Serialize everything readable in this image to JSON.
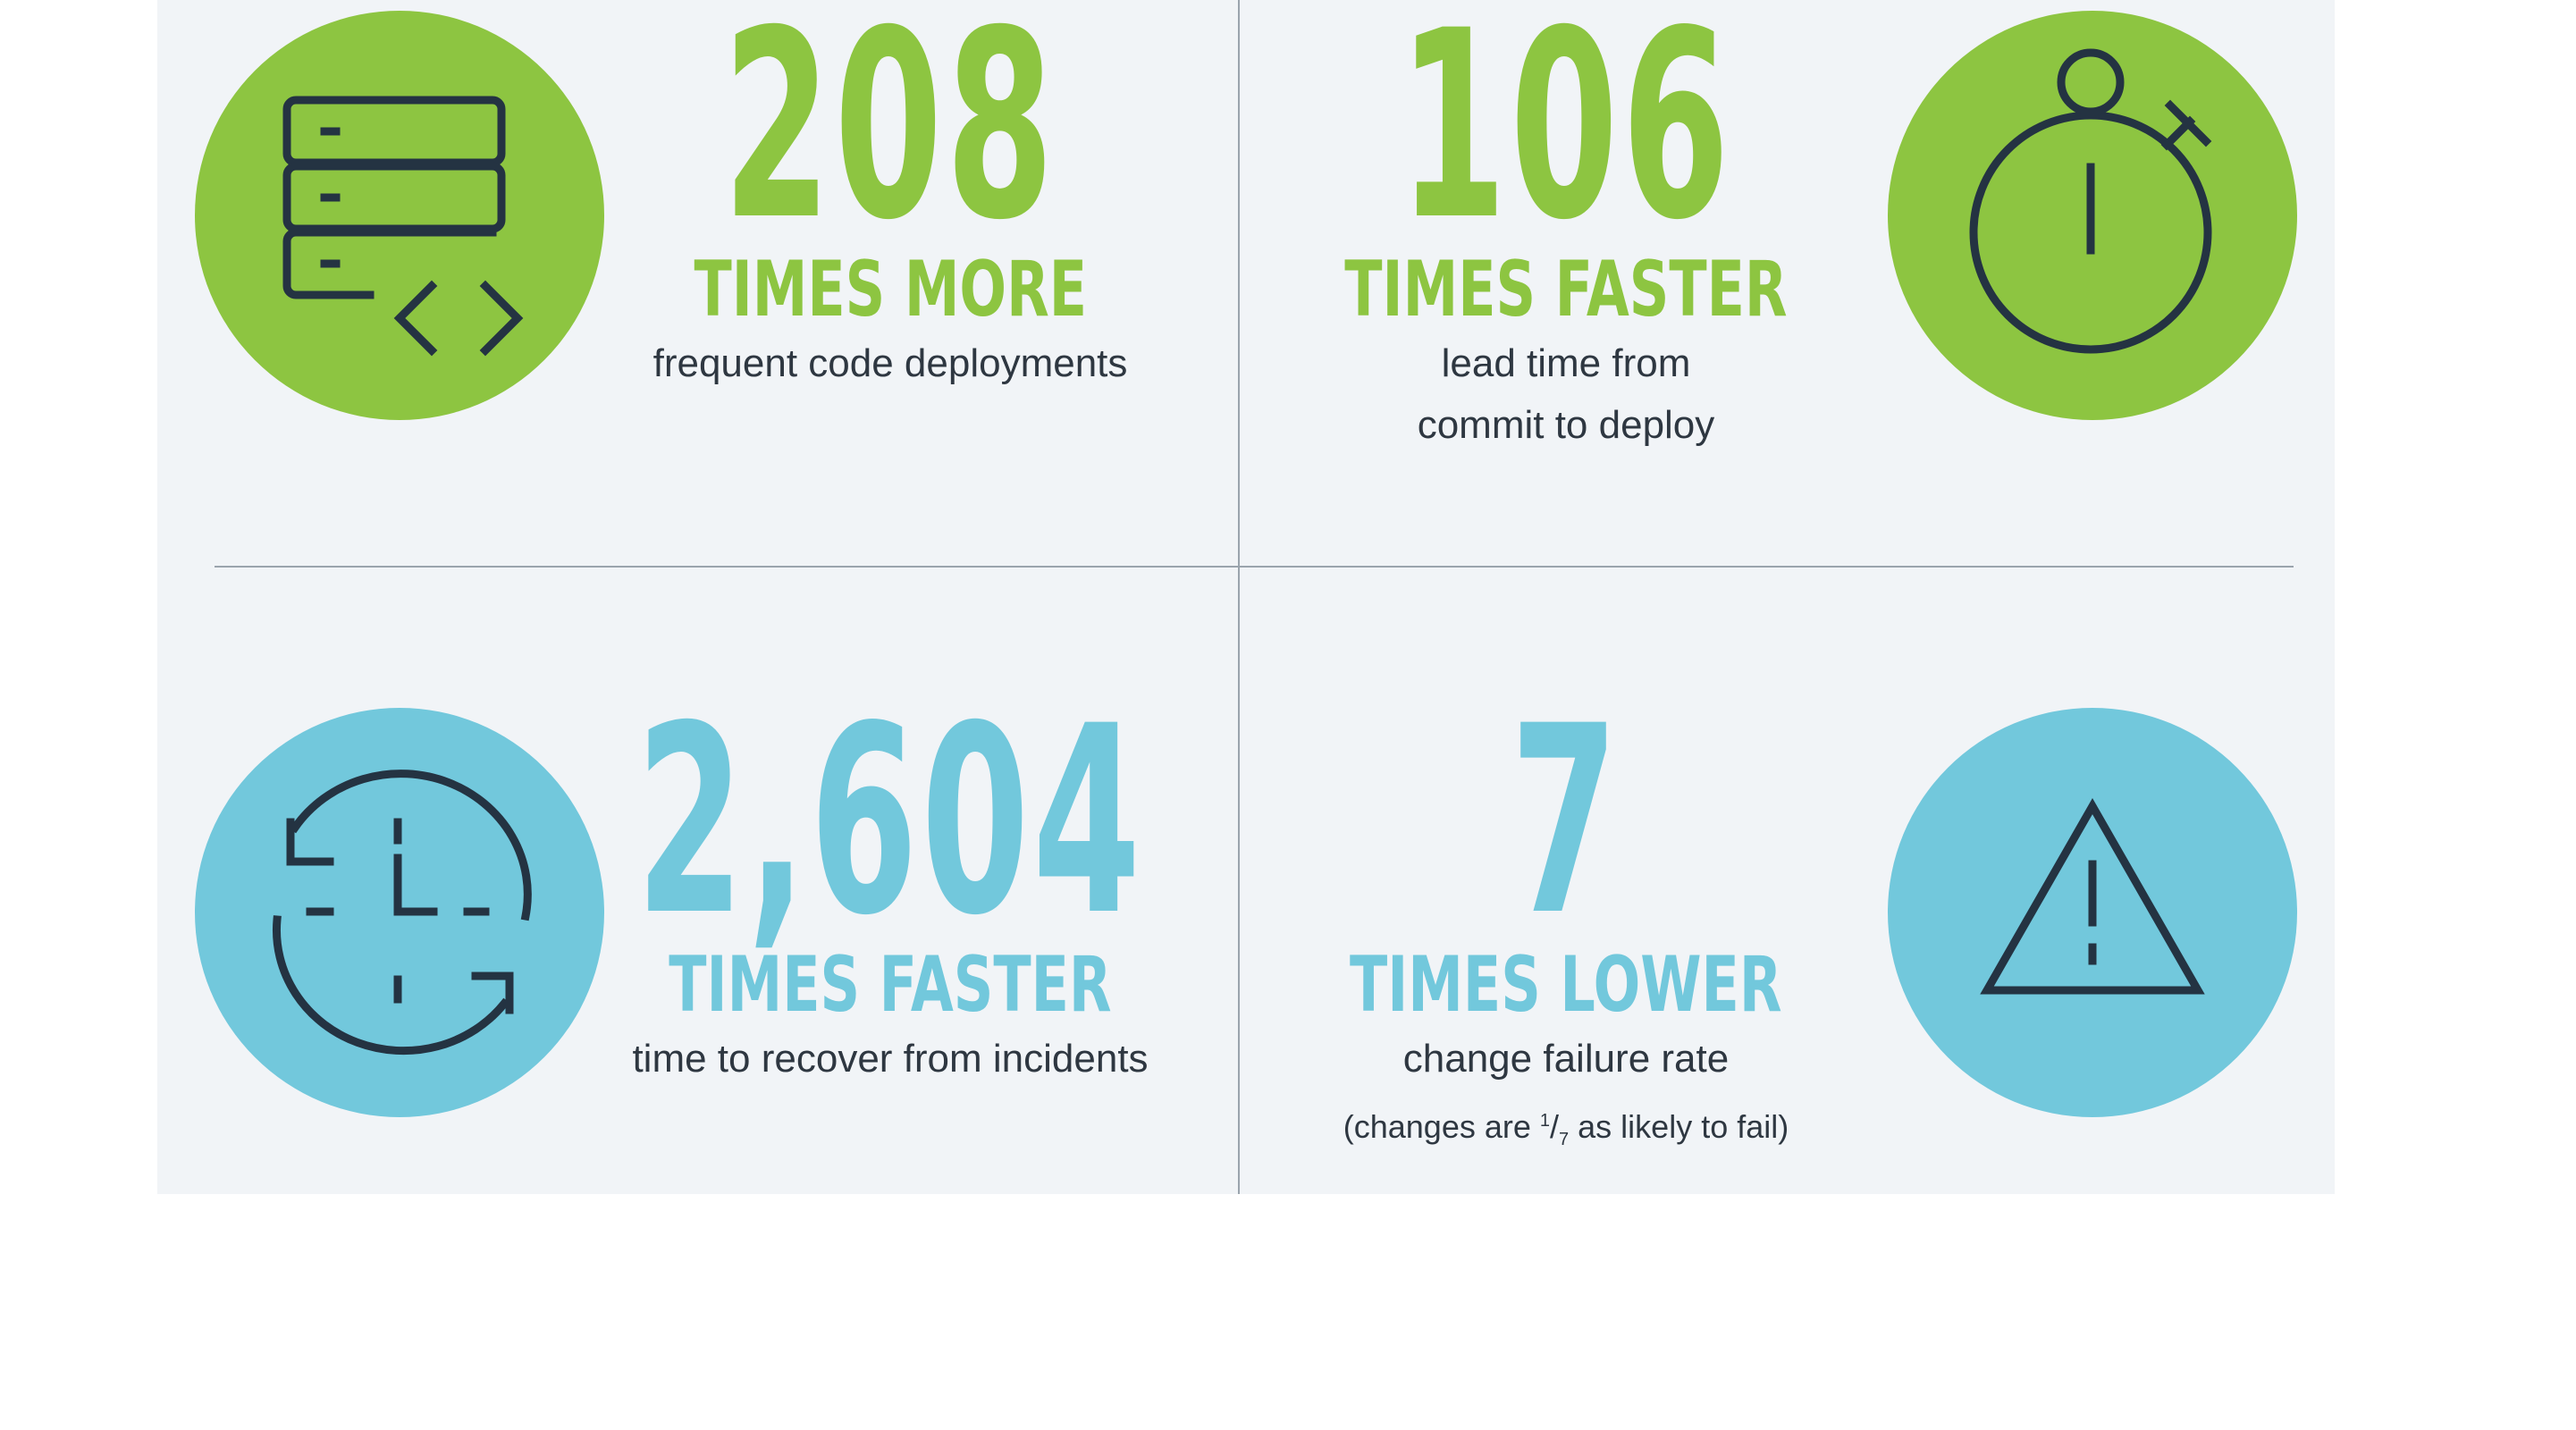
{
  "colors": {
    "green": "#8dc541",
    "blue": "#72c8dc",
    "panel": "#f1f4f7",
    "icon_stroke": "#243342",
    "divider": "#9aa4ad",
    "body_text": "#2e3741"
  },
  "stats": [
    {
      "icon": "server-code-icon",
      "number": "208",
      "headline": "TIMES MORE",
      "line1": "frequent code deployments"
    },
    {
      "icon": "stopwatch-icon",
      "number": "106",
      "headline": "TIMES FASTER",
      "line1": "lead time from",
      "line2": "commit to deploy"
    },
    {
      "icon": "clock-refresh-icon",
      "number": "2,604",
      "headline": "TIMES FASTER",
      "line1": "time to recover from incidents"
    },
    {
      "icon": "warning-triangle-icon",
      "number": "7",
      "headline": "TIMES LOWER",
      "line1": "change failure rate",
      "note_prefix": "(changes are ",
      "note_frac_num": "1",
      "note_frac_den": "7",
      "note_suffix": " as likely to fail)"
    }
  ]
}
